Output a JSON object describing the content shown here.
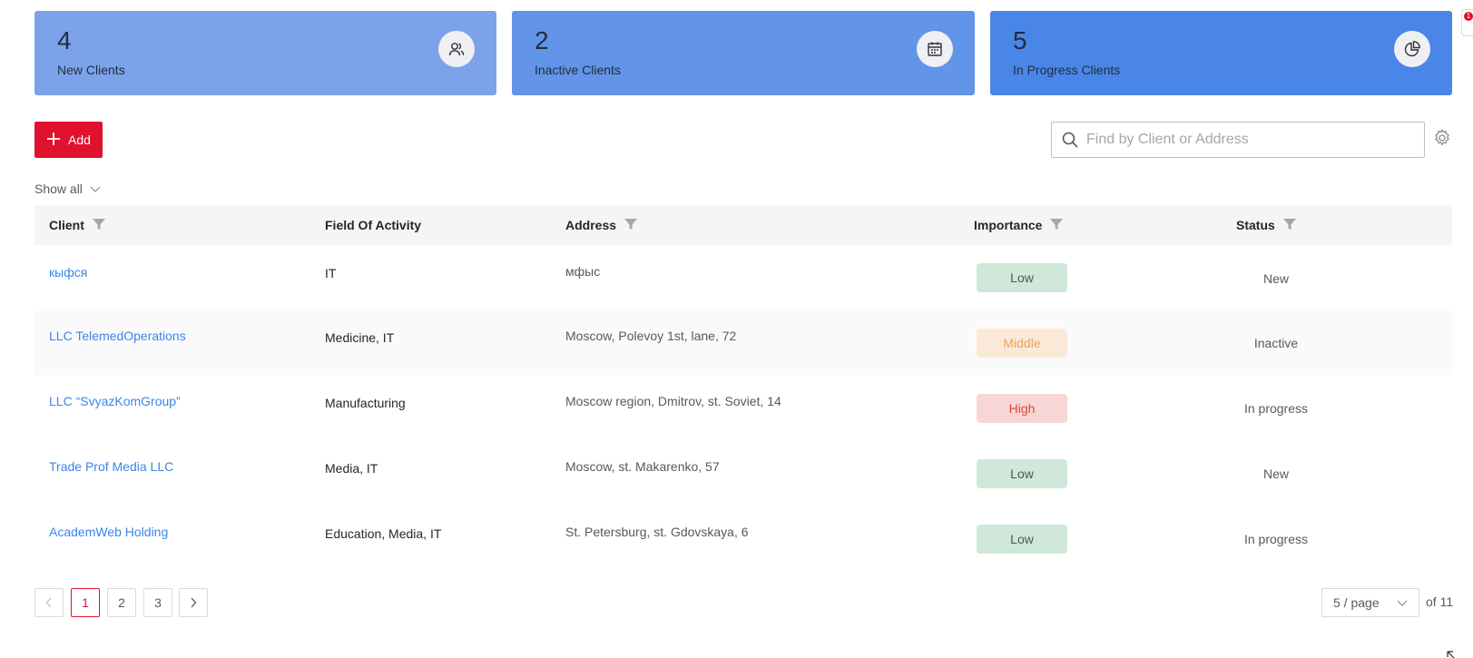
{
  "stats": [
    {
      "count": "4",
      "label": "New Clients",
      "icon": "users-icon"
    },
    {
      "count": "2",
      "label": "Inactive Clients",
      "icon": "calendar-icon"
    },
    {
      "count": "5",
      "label": "In Progress Clients",
      "icon": "pie-chart-icon"
    }
  ],
  "notifications": {
    "badge": "1"
  },
  "toolbar": {
    "add_label": "Add",
    "search_placeholder": "Find by Client or Address"
  },
  "filter": {
    "show_all": "Show all"
  },
  "table": {
    "columns": [
      "Client",
      "Field Of Activity",
      "Address",
      "Importance",
      "Status"
    ],
    "rows": [
      {
        "client": "кыфся",
        "field": "IT",
        "address": "мфыс",
        "importance": "Low",
        "status": "New"
      },
      {
        "client": "LLC TelemedOperations",
        "field": "Medicine, IT",
        "address": "Moscow, Polevoy 1st, lane, 72",
        "importance": "Middle",
        "status": "Inactive"
      },
      {
        "client": "LLC “SvyazKomGroup”",
        "field": "Manufacturing",
        "address": "Moscow region, Dmitrov, st. Soviet, 14",
        "importance": "High",
        "status": "In progress"
      },
      {
        "client": "Trade Prof Media LLC",
        "field": "Media, IT",
        "address": "Moscow, st. Makarenko, 57",
        "importance": "Low",
        "status": "New"
      },
      {
        "client": "AcademWeb Holding",
        "field": "Education, Media, IT",
        "address": "St. Petersburg, st. Gdovskaya, 6",
        "importance": "Low",
        "status": "In progress"
      }
    ]
  },
  "pagination": {
    "pages": [
      "1",
      "2",
      "3"
    ],
    "current": "1",
    "page_size": "5 / page",
    "total": "of 11"
  },
  "colors": {
    "accent": "#e0122e",
    "link": "#3a86e8"
  }
}
